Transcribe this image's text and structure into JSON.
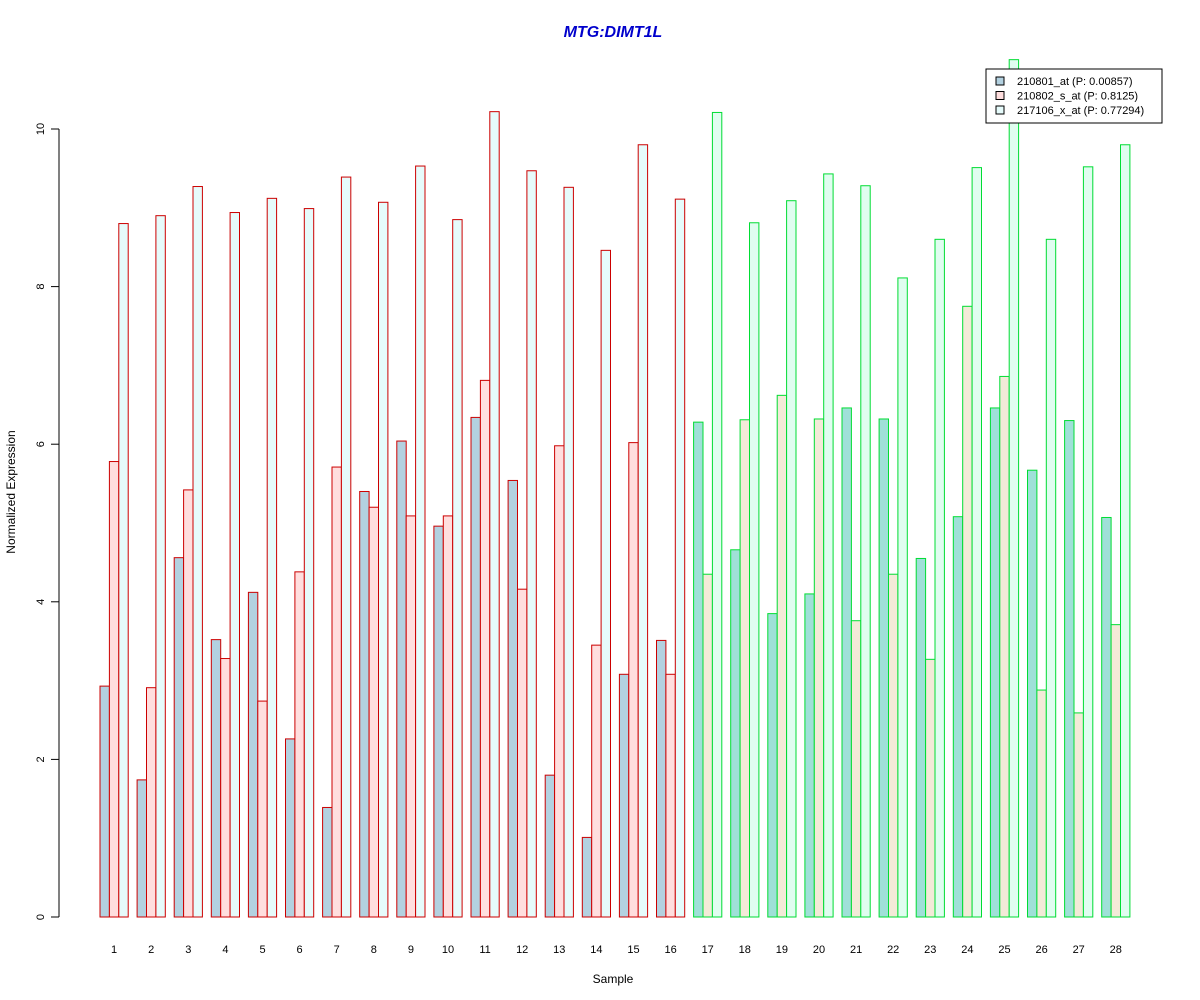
{
  "chart_data": {
    "type": "bar",
    "title": "MTG:DIMT1L",
    "xlabel": "Sample",
    "ylabel": "Normalized Expression",
    "ylim": [
      0,
      11
    ],
    "yticks": [
      0,
      2,
      4,
      6,
      8,
      10
    ],
    "categories": [
      "1",
      "2",
      "3",
      "4",
      "5",
      "6",
      "7",
      "8",
      "9",
      "10",
      "11",
      "12",
      "13",
      "14",
      "15",
      "16",
      "17",
      "18",
      "19",
      "20",
      "21",
      "22",
      "23",
      "24",
      "25",
      "26",
      "27",
      "28"
    ],
    "groups": [
      {
        "from": 1,
        "to": 16,
        "border_color": "#cc0000",
        "fills": [
          "#b3d1e0",
          "#ffdede",
          "#e6fbfb"
        ]
      },
      {
        "from": 17,
        "to": 28,
        "border_color": "#00dd33",
        "fills": [
          "#9fe0d8",
          "#f3ead8",
          "#e0fdf0"
        ]
      }
    ],
    "series": [
      {
        "name": "210801_at (P: 0.00857)",
        "legend_fill": "#b3d1e0",
        "values": [
          2.93,
          1.74,
          4.56,
          3.52,
          4.12,
          2.26,
          1.39,
          5.4,
          6.04,
          4.96,
          6.34,
          5.54,
          1.8,
          1.01,
          3.08,
          3.51,
          6.28,
          4.66,
          3.85,
          4.1,
          6.46,
          6.32,
          4.55,
          5.08,
          6.46,
          5.67,
          6.3,
          5.07
        ]
      },
      {
        "name": "210802_s_at (P: 0.8125)",
        "legend_fill": "#ffdede",
        "values": [
          5.78,
          2.91,
          5.42,
          3.28,
          2.74,
          4.38,
          5.71,
          5.2,
          5.09,
          5.09,
          6.81,
          4.16,
          5.98,
          3.45,
          6.02,
          3.08,
          4.35,
          6.31,
          6.62,
          6.32,
          3.76,
          4.35,
          3.27,
          7.75,
          6.86,
          2.88,
          2.59,
          3.71
        ]
      },
      {
        "name": "217106_x_at (P: 0.77294)",
        "legend_fill": "#e6fbfb",
        "values": [
          8.8,
          8.9,
          9.27,
          8.94,
          9.12,
          8.99,
          9.39,
          9.07,
          9.53,
          8.85,
          10.22,
          9.47,
          9.26,
          8.46,
          9.8,
          9.11,
          10.21,
          8.81,
          9.09,
          9.43,
          9.28,
          8.11,
          8.6,
          9.51,
          10.88,
          8.6,
          9.52,
          9.8
        ]
      }
    ],
    "grid": false,
    "legend_position": "top-right"
  }
}
